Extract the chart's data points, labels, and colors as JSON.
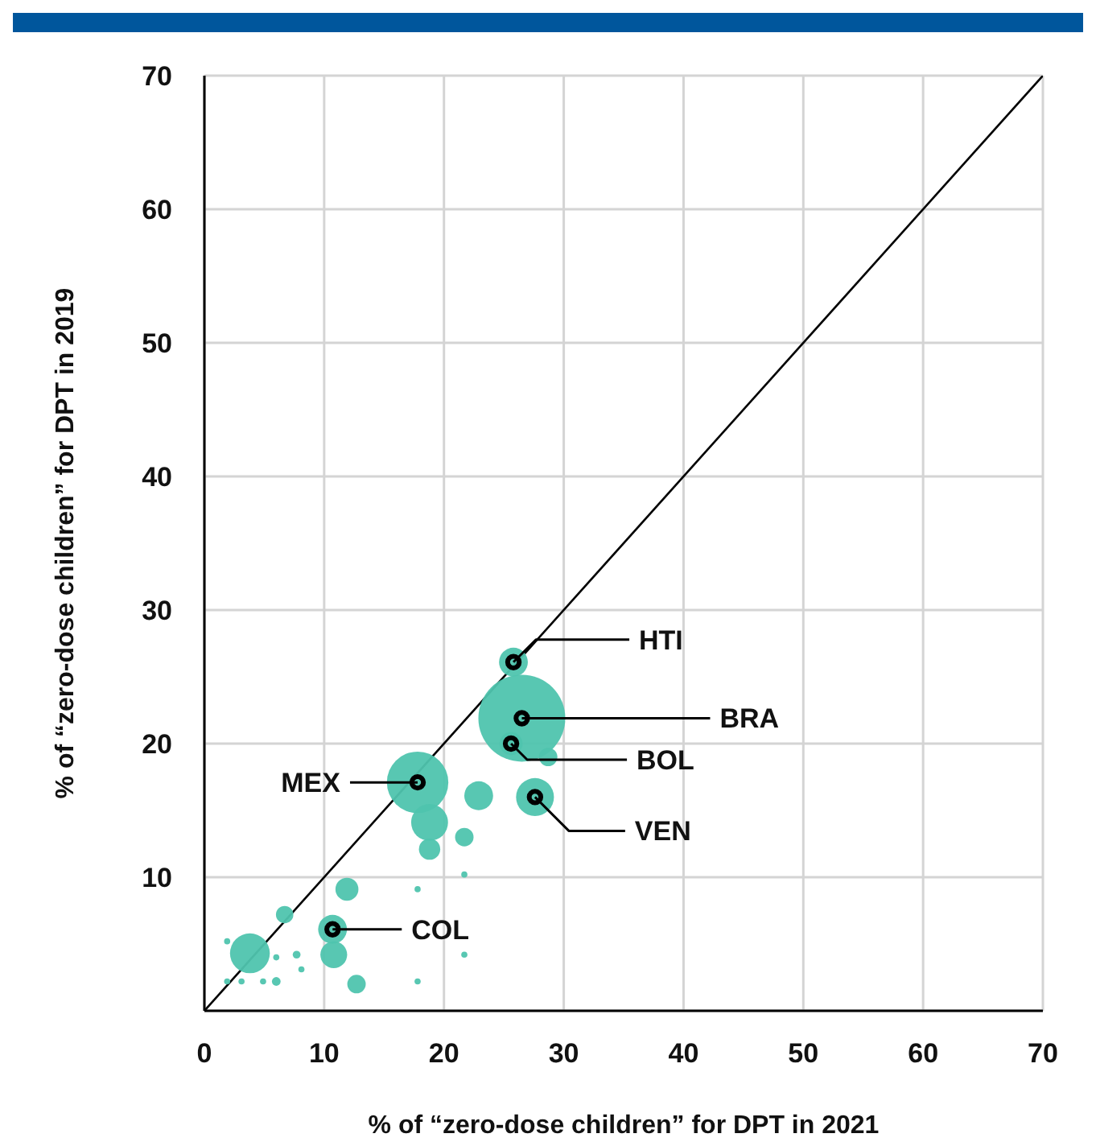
{
  "chart_data": {
    "type": "bubble",
    "xlabel": "% of “zero-dose children” for DPT in 2021",
    "ylabel": "% of “zero-dose children” for DPT in 2019",
    "xlim": [
      0,
      70
    ],
    "ylim": [
      0,
      70
    ],
    "xticks": [
      0,
      10,
      20,
      30,
      40,
      50,
      60,
      70
    ],
    "yticks": [
      10,
      20,
      30,
      40,
      50,
      60,
      70
    ],
    "grid": true,
    "series": [
      {
        "color": "#4fc4ae",
        "x": [
          25.8,
          26.5,
          25.6,
          28.7,
          17.8,
          27.6,
          22.9,
          18.8,
          21.7,
          18.8,
          21.7,
          11.9,
          17.8,
          6.7,
          10.7,
          1.9,
          3.8,
          6.0,
          7.7,
          10.8,
          8.1,
          21.7,
          1.9,
          3.1,
          4.9,
          6.0,
          12.7,
          17.8
        ],
        "values": [
          26.1,
          21.9,
          20.0,
          19.0,
          17.1,
          16.0,
          16.1,
          14.1,
          13.0,
          12.1,
          10.2,
          9.1,
          9.1,
          7.2,
          6.1,
          5.2,
          4.3,
          4.0,
          4.2,
          4.2,
          3.1,
          4.2,
          2.2,
          2.2,
          2.2,
          2.2,
          2.0,
          2.2
        ],
        "sizes": [
          0.11,
          1,
          0.07,
          0.045,
          0.5,
          0.19,
          0.11,
          0.18,
          0.045,
          0.06,
          0.005,
          0.07,
          0.005,
          0.04,
          0.11,
          0.005,
          0.21,
          0.005,
          0.008,
          0.095,
          0.005,
          0.005,
          0.005,
          0.005,
          0.005,
          0.01,
          0.045,
          0.005
        ]
      },
      {
        "type": "line",
        "color": "#000000",
        "x": [
          0,
          70
        ],
        "values": [
          0,
          70
        ]
      }
    ],
    "annotations": [
      {
        "text": "HTI",
        "x": 25.8,
        "y": 26.1
      },
      {
        "text": "BRA",
        "x": 26.5,
        "y": 21.9
      },
      {
        "text": "BOL",
        "x": 25.6,
        "y": 20.0
      },
      {
        "text": "VEN",
        "x": 27.6,
        "y": 16.0
      },
      {
        "text": "MEX",
        "x": 17.8,
        "y": 17.1
      },
      {
        "text": "COL",
        "x": 10.7,
        "y": 6.1
      }
    ]
  }
}
